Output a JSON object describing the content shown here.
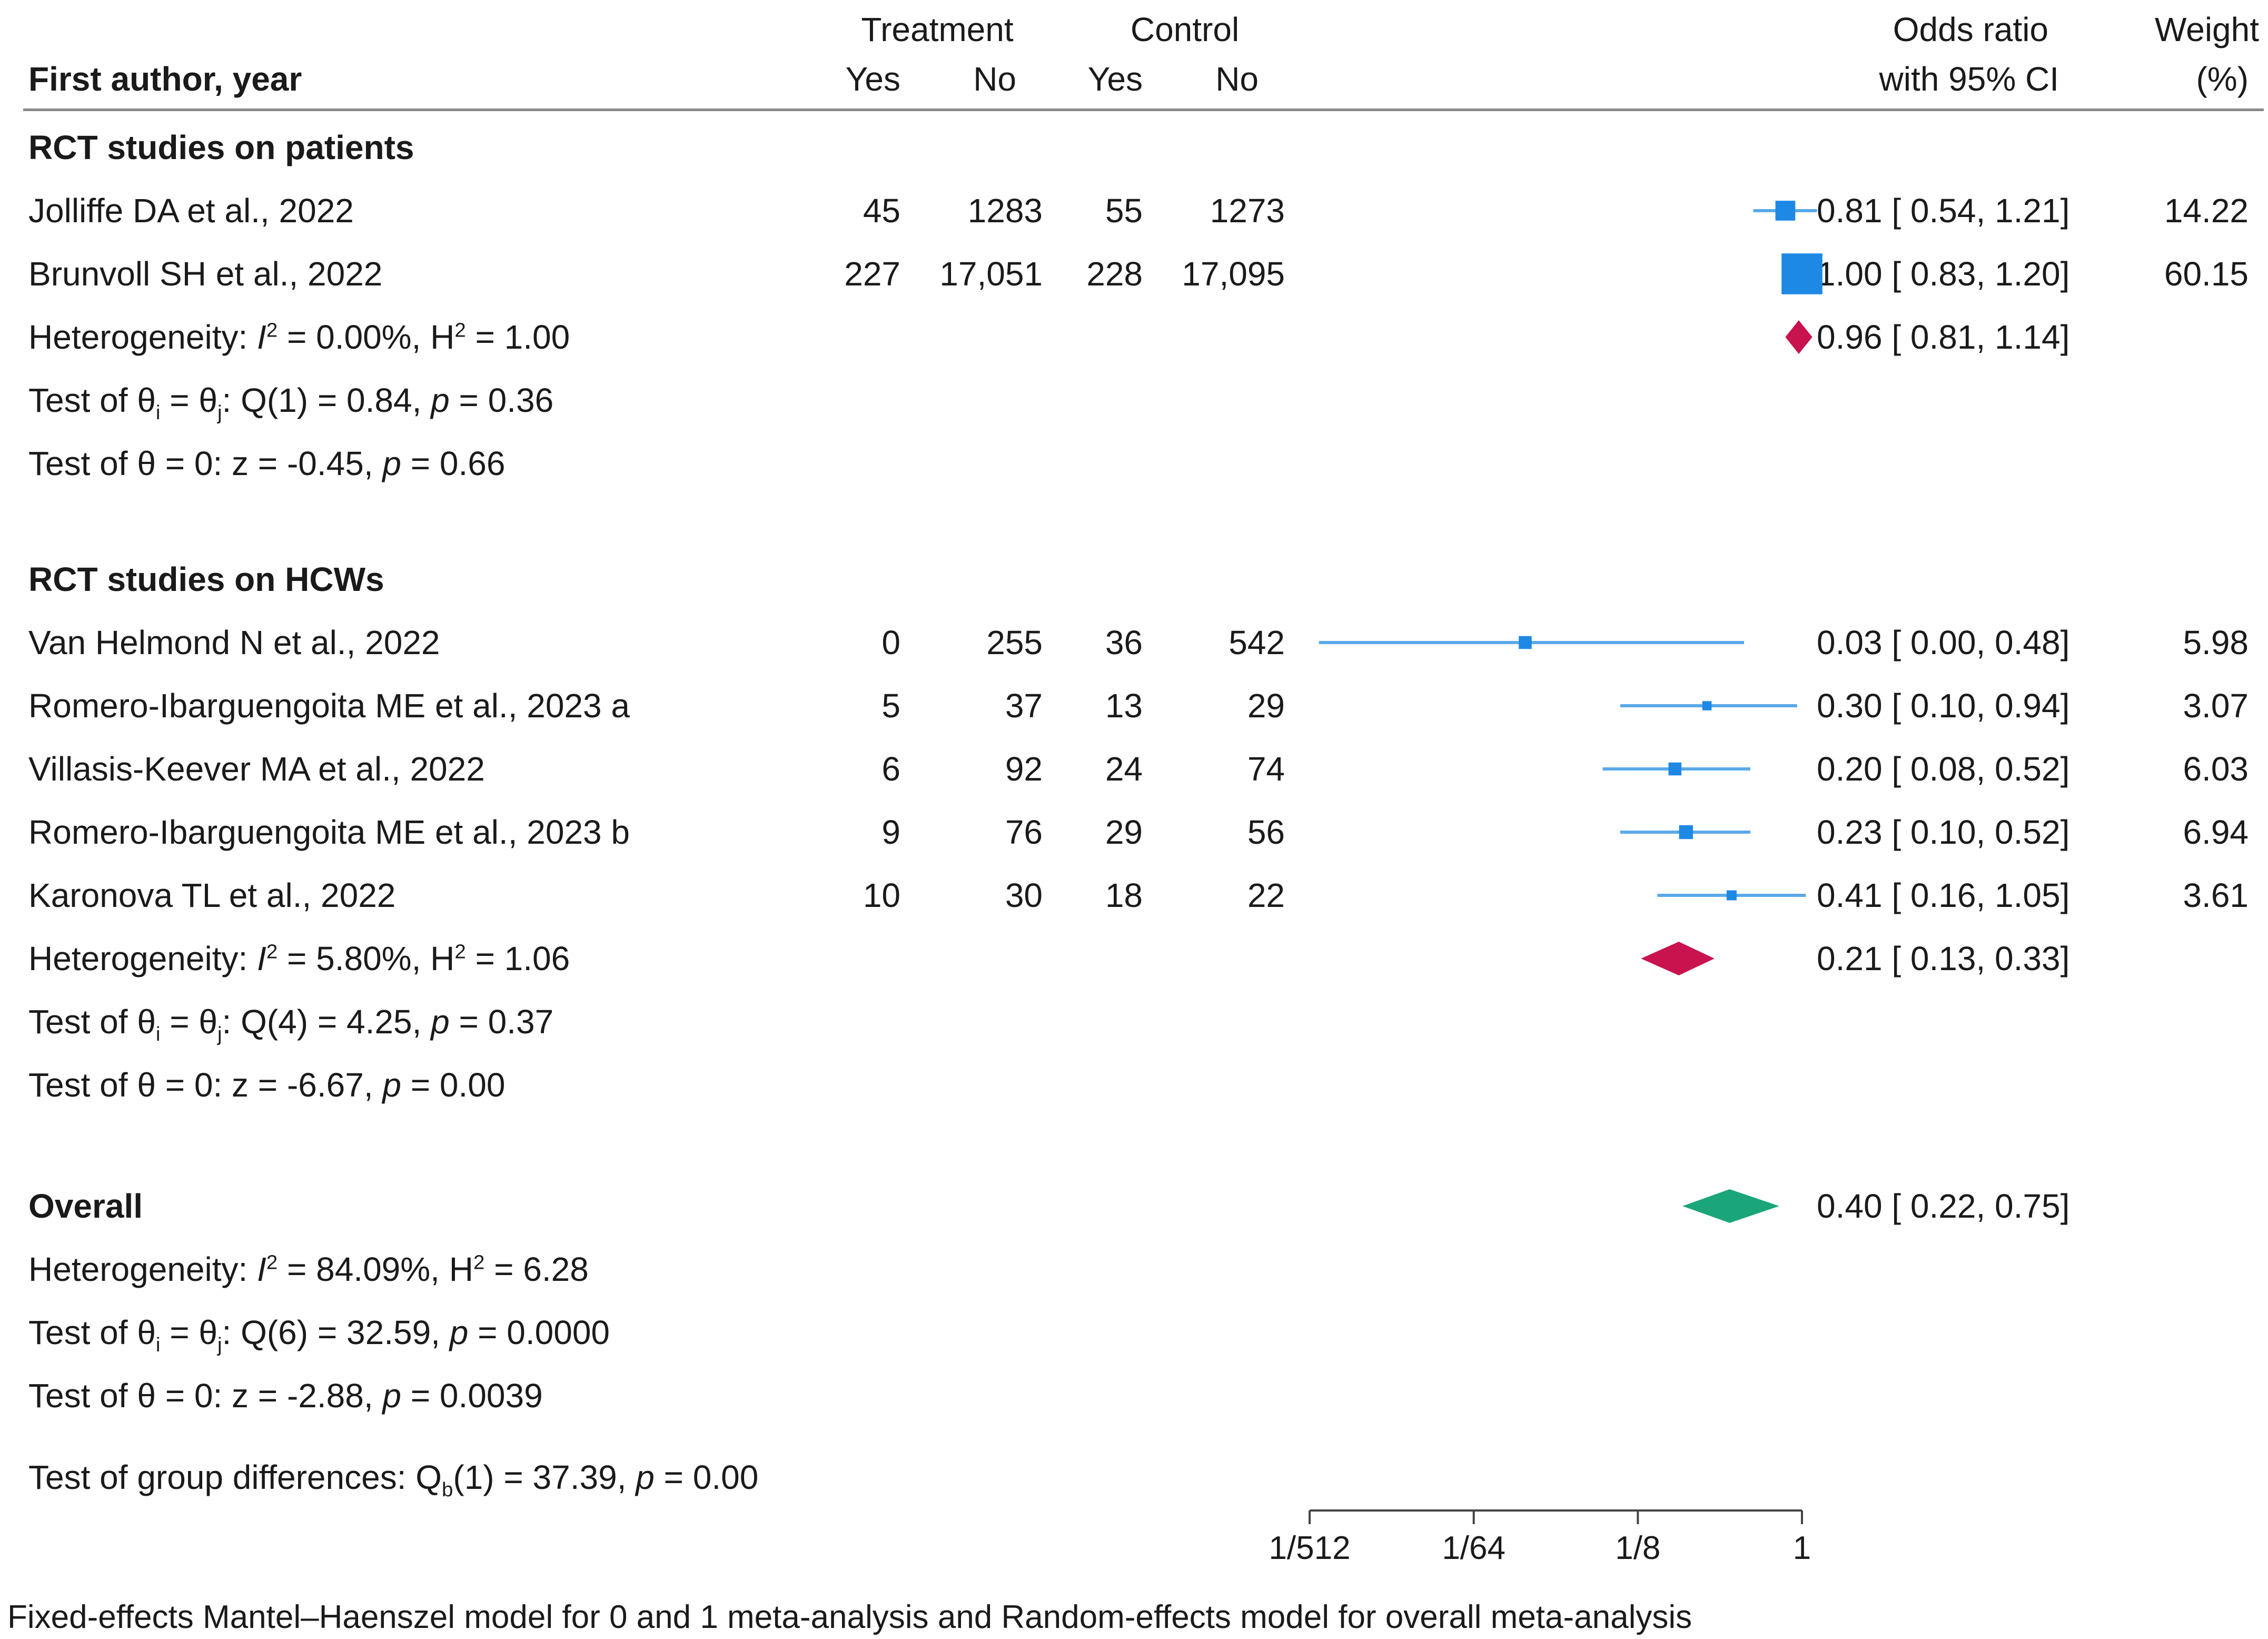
{
  "header": {
    "treatment": "Treatment",
    "control": "Control",
    "yes": "Yes",
    "no": "No",
    "author_col": "First author, year",
    "or_col_line1": "Odds ratio",
    "or_col_line2": "with 95% CI",
    "weight_line1": "Weight",
    "weight_line2": "(%)"
  },
  "groups": [
    {
      "label": "RCT studies on patients",
      "heterogeneity": {
        "i2": "0.00%",
        "h2": "1.00"
      },
      "q_test": {
        "df": "1",
        "q": "0.84",
        "p": "0.36"
      },
      "z_test": {
        "z": "-0.45",
        "p": "0.66"
      },
      "pooled": {
        "text": "0.96 [ 0.81,  1.14]"
      }
    },
    {
      "label": "RCT studies on HCWs",
      "heterogeneity": {
        "i2": "5.80%",
        "h2": "1.06"
      },
      "q_test": {
        "df": "4",
        "q": "4.25",
        "p": "0.37"
      },
      "z_test": {
        "z": "-6.67",
        "p": "0.00"
      },
      "pooled": {
        "text": "0.21 [ 0.13,  0.33]"
      }
    }
  ],
  "studies": [
    {
      "author": "Jolliffe DA et al., 2022",
      "t_yes": "45",
      "t_no": "1283",
      "c_yes": "55",
      "c_no": "1273",
      "or_text": "0.81 [ 0.54,  1.21]",
      "weight": "14.22"
    },
    {
      "author": "Brunvoll SH et al., 2022",
      "t_yes": "227",
      "t_no": "17,051",
      "c_yes": "228",
      "c_no": "17,095",
      "or_text": "1.00 [ 0.83,  1.20]",
      "weight": "60.15"
    },
    {
      "author": "Van Helmond N et al., 2022",
      "t_yes": "0",
      "t_no": "255",
      "c_yes": "36",
      "c_no": "542",
      "or_text": "0.03 [ 0.00,  0.48]",
      "weight": "5.98"
    },
    {
      "author": "Romero-Ibarguengoita ME et al., 2023 a",
      "t_yes": "5",
      "t_no": "37",
      "c_yes": "13",
      "c_no": "29",
      "or_text": "0.30 [ 0.10,  0.94]",
      "weight": "3.07"
    },
    {
      "author": "Villasis-Keever MA et al., 2022",
      "t_yes": "6",
      "t_no": "92",
      "c_yes": "24",
      "c_no": "74",
      "or_text": "0.20 [ 0.08,  0.52]",
      "weight": "6.03"
    },
    {
      "author": "Romero-Ibarguengoita ME et al., 2023 b",
      "t_yes": "9",
      "t_no": "76",
      "c_yes": "29",
      "c_no": "56",
      "or_text": "0.23 [ 0.10,  0.52]",
      "weight": "6.94"
    },
    {
      "author": "Karonova TL et al., 2022",
      "t_yes": "10",
      "t_no": "30",
      "c_yes": "18",
      "c_no": "22",
      "or_text": "0.41 [ 0.16,  1.05]",
      "weight": "3.61"
    }
  ],
  "overall": {
    "label": "Overall",
    "heterogeneity": {
      "i2": "84.09%",
      "h2": "6.28"
    },
    "q_test": {
      "df": "6",
      "q": "32.59",
      "p": "0.0000"
    },
    "z_test": {
      "z": "-2.88",
      "p": "0.0039"
    },
    "pooled": {
      "text": "0.40 [ 0.22,  0.75]"
    },
    "group_diff": {
      "df": "1",
      "q": "37.39",
      "p": "0.00"
    }
  },
  "caption": "Fixed-effects Mantel–Haenszel model for 0 and 1 meta-analysis and Random-effects model for overall meta-analysis",
  "chart_data": {
    "type": "forest",
    "scale": "log2",
    "x_ticks": [
      {
        "label": "1/512",
        "value": 0.001953125
      },
      {
        "label": "1/64",
        "value": 0.015625
      },
      {
        "label": "1/8",
        "value": 0.125
      },
      {
        "label": "1",
        "value": 1
      }
    ],
    "xlim": [
      0.001953125,
      1
    ],
    "studies": [
      {
        "name": "Jolliffe DA et al., 2022",
        "or": 0.81,
        "lo": 0.54,
        "hi": 1.21,
        "weight": 14.22,
        "group": 0
      },
      {
        "name": "Brunvoll SH et al., 2022",
        "or": 1.0,
        "lo": 0.83,
        "hi": 1.2,
        "weight": 60.15,
        "group": 0
      },
      {
        "name": "Van Helmond N et al., 2022",
        "or": 0.03,
        "lo": 0.0022,
        "hi": 0.48,
        "weight": 5.98,
        "group": 1
      },
      {
        "name": "Romero-Ibarguengoita ME et al., 2023 a",
        "or": 0.3,
        "lo": 0.1,
        "hi": 0.94,
        "weight": 3.07,
        "group": 1
      },
      {
        "name": "Villasis-Keever MA et al., 2022",
        "or": 0.2,
        "lo": 0.08,
        "hi": 0.52,
        "weight": 6.03,
        "group": 1
      },
      {
        "name": "Romero-Ibarguengoita ME et al., 2023 b",
        "or": 0.23,
        "lo": 0.1,
        "hi": 0.52,
        "weight": 6.94,
        "group": 1
      },
      {
        "name": "Karonova TL et al., 2022",
        "or": 0.41,
        "lo": 0.16,
        "hi": 1.05,
        "weight": 3.61,
        "group": 1
      }
    ],
    "pooled": [
      {
        "name": "RCT studies on patients",
        "or": 0.96,
        "lo": 0.81,
        "hi": 1.14,
        "color": "#c8134f"
      },
      {
        "name": "RCT studies on HCWs",
        "or": 0.21,
        "lo": 0.13,
        "hi": 0.33,
        "color": "#c8134f"
      },
      {
        "name": "Overall",
        "or": 0.4,
        "lo": 0.22,
        "hi": 0.75,
        "color": "#1aa57a"
      }
    ],
    "study_color": "#1e88e5",
    "ci_color": "#5aa9e8"
  }
}
